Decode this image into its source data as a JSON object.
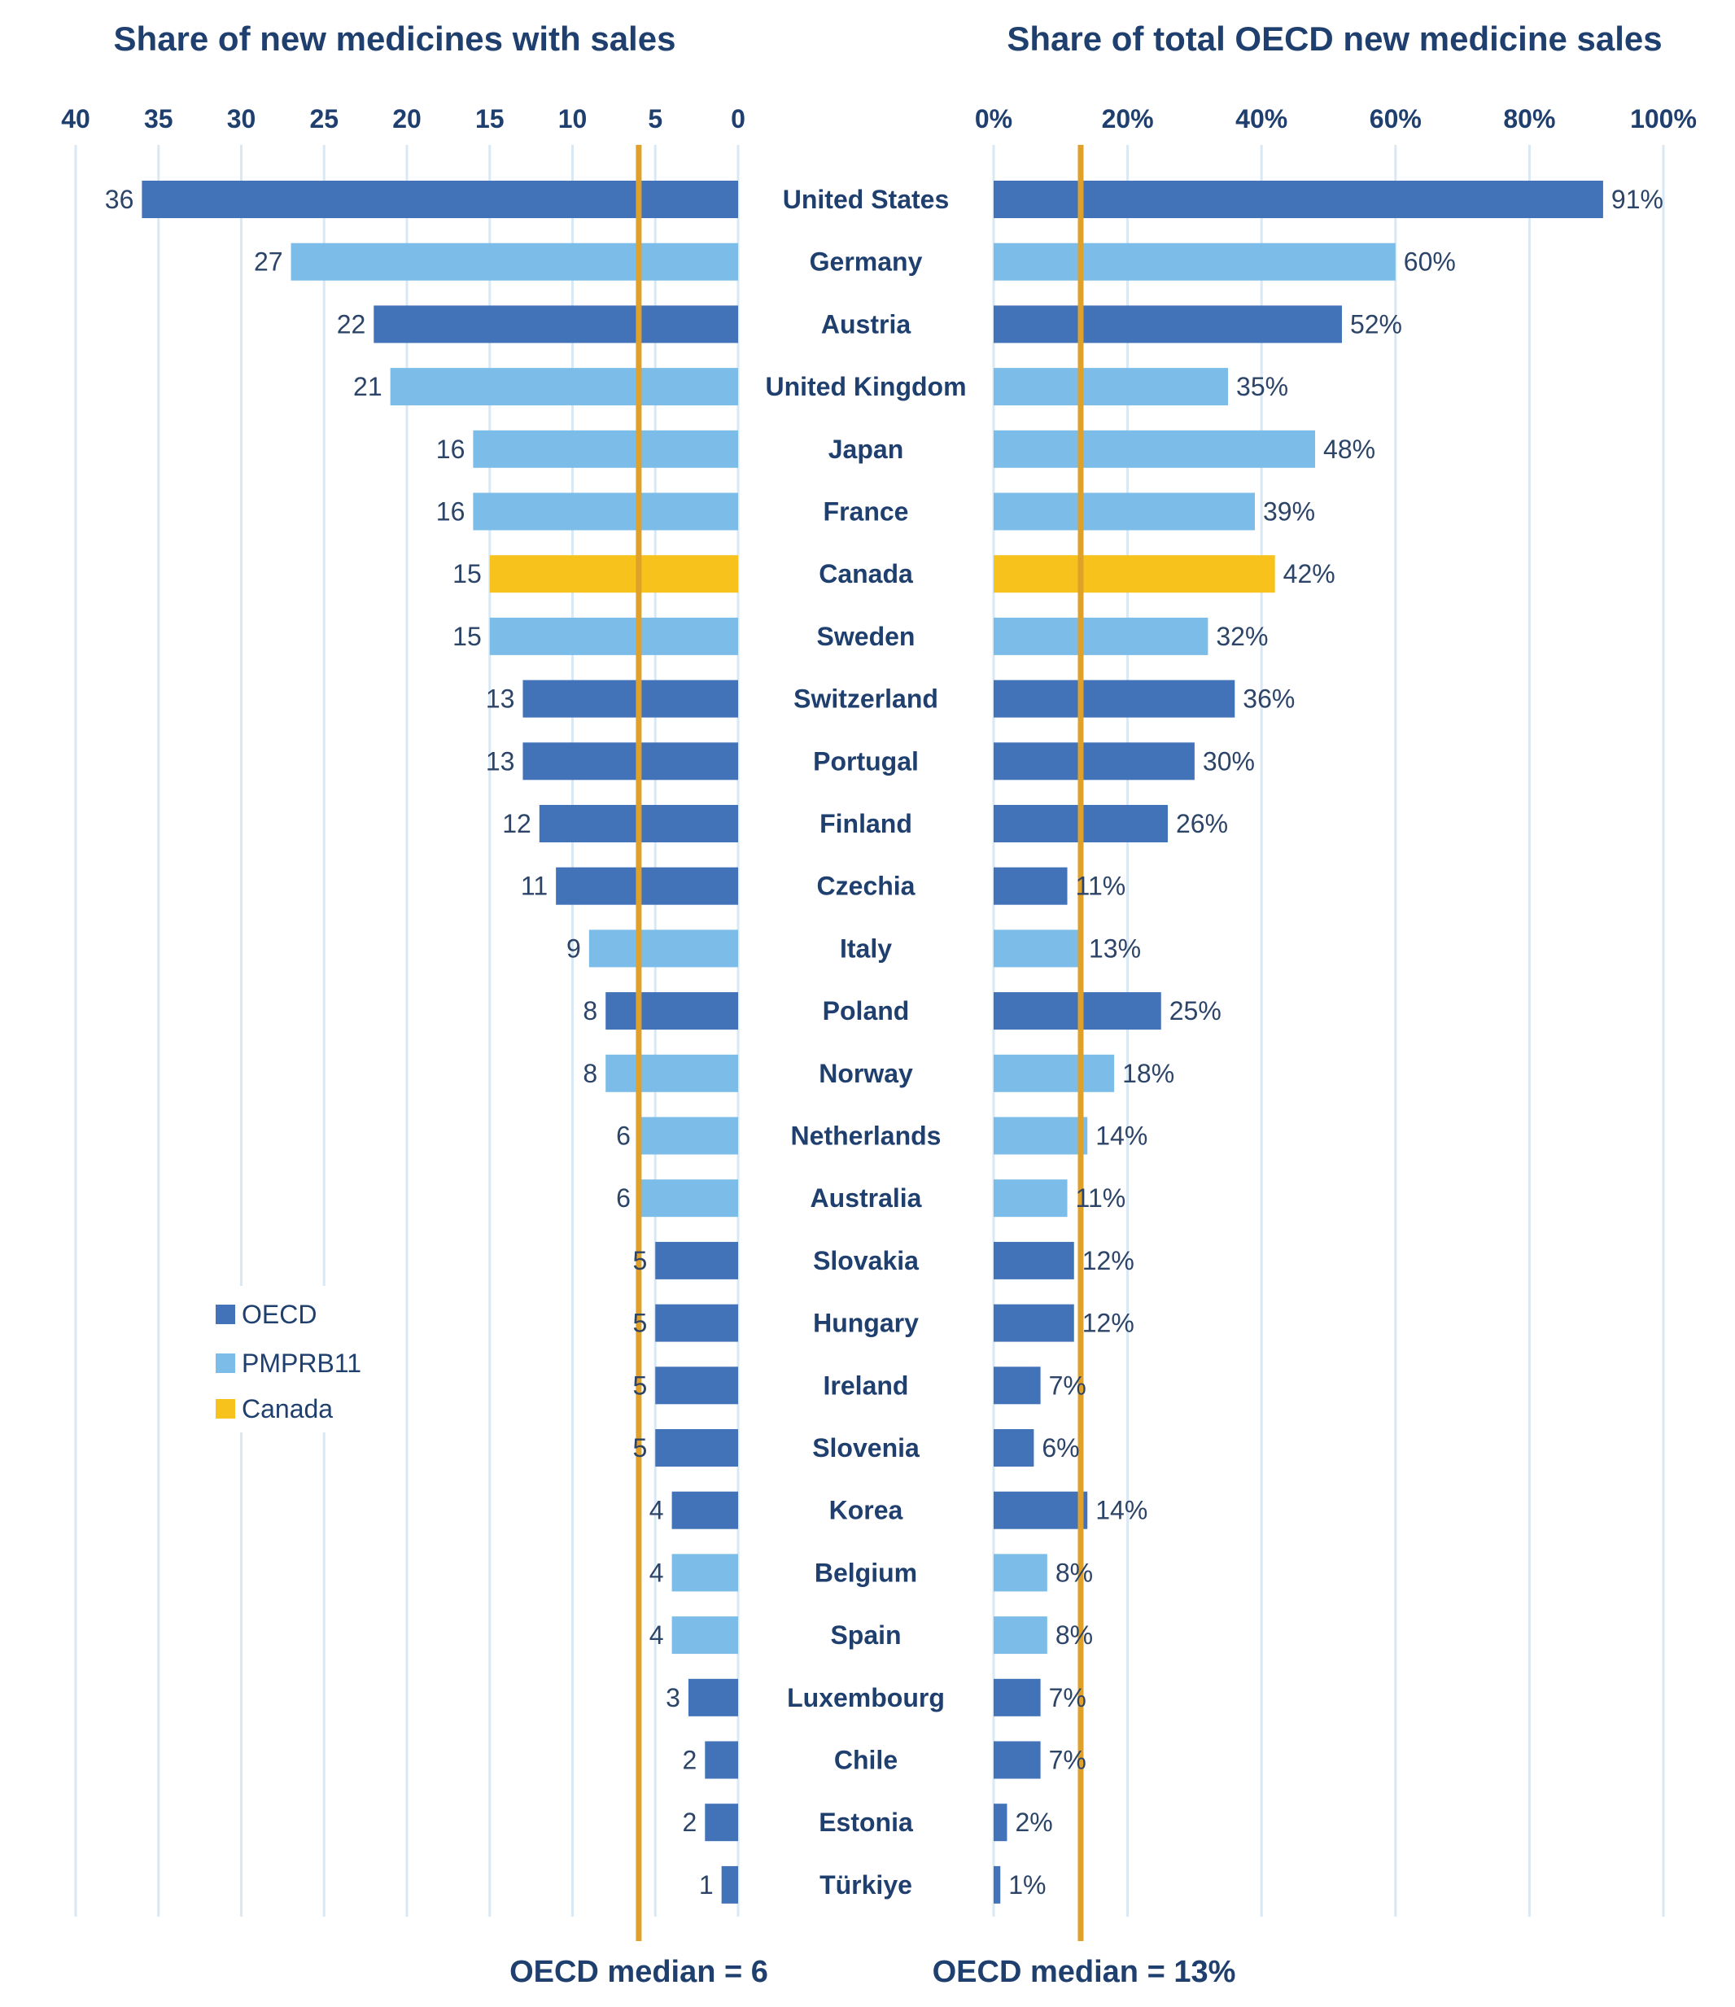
{
  "colors": {
    "OECD": "#4272b8",
    "PMPRB11": "#7bbde8",
    "Canada": "#f7c21c",
    "median_line": "#e0a12a",
    "text": "#1f3f6e",
    "grid": "#d9e8f5"
  },
  "legend": [
    {
      "key": "OECD",
      "label": "OECD"
    },
    {
      "key": "PMPRB11",
      "label": "PMPRB11"
    },
    {
      "key": "Canada",
      "label": "Canada"
    }
  ],
  "chart_data": [
    {
      "type": "bar",
      "orientation": "horizontal",
      "direction": "reversed",
      "title": "Share of new medicines with sales",
      "xlim": [
        0,
        40
      ],
      "ticks": [
        "40",
        "35",
        "30",
        "25",
        "20",
        "15",
        "10",
        "5",
        "0"
      ],
      "tick_values": [
        40,
        35,
        30,
        25,
        20,
        15,
        10,
        5,
        0
      ],
      "grid": true,
      "median": {
        "value": 6,
        "label": "OECD median = 6"
      },
      "categories": [
        "United States",
        "Germany",
        "Austria",
        "United Kingdom",
        "Japan",
        "France",
        "Canada",
        "Sweden",
        "Switzerland",
        "Portugal",
        "Finland",
        "Czechia",
        "Italy",
        "Poland",
        "Norway",
        "Netherlands",
        "Australia",
        "Slovakia",
        "Hungary",
        "Ireland",
        "Slovenia",
        "Korea",
        "Belgium",
        "Spain",
        "Luxembourg",
        "Chile",
        "Estonia",
        "Türkiye"
      ],
      "groups": [
        "OECD",
        "PMPRB11",
        "OECD",
        "PMPRB11",
        "PMPRB11",
        "PMPRB11",
        "Canada",
        "PMPRB11",
        "OECD",
        "OECD",
        "OECD",
        "OECD",
        "PMPRB11",
        "OECD",
        "PMPRB11",
        "PMPRB11",
        "PMPRB11",
        "OECD",
        "OECD",
        "OECD",
        "OECD",
        "OECD",
        "PMPRB11",
        "PMPRB11",
        "OECD",
        "OECD",
        "OECD",
        "OECD"
      ],
      "values": [
        36,
        27,
        22,
        21,
        16,
        16,
        15,
        15,
        13,
        13,
        12,
        11,
        9,
        8,
        8,
        6,
        6,
        5,
        5,
        5,
        5,
        4,
        4,
        4,
        3,
        2,
        2,
        1
      ],
      "labels": [
        "36",
        "27",
        "22",
        "21",
        "16",
        "16",
        "15",
        "15",
        "13",
        "13",
        "12",
        "11",
        "9",
        "8",
        "8",
        "6",
        "6",
        "5",
        "5",
        "5",
        "5",
        "4",
        "4",
        "4",
        "3",
        "2",
        "2",
        "1"
      ]
    },
    {
      "type": "bar",
      "orientation": "horizontal",
      "title": "Share of total OECD new medicine sales",
      "xlim": [
        0,
        100
      ],
      "ticks": [
        "0%",
        "20%",
        "40%",
        "60%",
        "80%",
        "100%"
      ],
      "tick_values": [
        0,
        20,
        40,
        60,
        80,
        100
      ],
      "grid": true,
      "median": {
        "value": 13,
        "label": "OECD median = 13%"
      },
      "categories": [
        "United States",
        "Germany",
        "Austria",
        "United Kingdom",
        "Japan",
        "France",
        "Canada",
        "Sweden",
        "Switzerland",
        "Portugal",
        "Finland",
        "Czechia",
        "Italy",
        "Poland",
        "Norway",
        "Netherlands",
        "Australia",
        "Slovakia",
        "Hungary",
        "Ireland",
        "Slovenia",
        "Korea",
        "Belgium",
        "Spain",
        "Luxembourg",
        "Chile",
        "Estonia",
        "Türkiye"
      ],
      "groups": [
        "OECD",
        "PMPRB11",
        "OECD",
        "PMPRB11",
        "PMPRB11",
        "PMPRB11",
        "Canada",
        "PMPRB11",
        "OECD",
        "OECD",
        "OECD",
        "OECD",
        "PMPRB11",
        "OECD",
        "PMPRB11",
        "PMPRB11",
        "PMPRB11",
        "OECD",
        "OECD",
        "OECD",
        "OECD",
        "OECD",
        "PMPRB11",
        "PMPRB11",
        "OECD",
        "OECD",
        "OECD",
        "OECD"
      ],
      "values": [
        91,
        60,
        52,
        35,
        48,
        39,
        42,
        32,
        36,
        30,
        26,
        11,
        13,
        25,
        18,
        14,
        11,
        12,
        12,
        7,
        6,
        14,
        8,
        8,
        7,
        7,
        2,
        1
      ],
      "labels": [
        "91%",
        "60%",
        "52%",
        "35%",
        "48%",
        "39%",
        "42%",
        "32%",
        "36%",
        "30%",
        "26%",
        "11%",
        "13%",
        "25%",
        "18%",
        "14%",
        "11%",
        "12%",
        "12%",
        "7%",
        "6%",
        "14%",
        "8%",
        "8%",
        "7%",
        "7%",
        "2%",
        "1%"
      ]
    }
  ]
}
